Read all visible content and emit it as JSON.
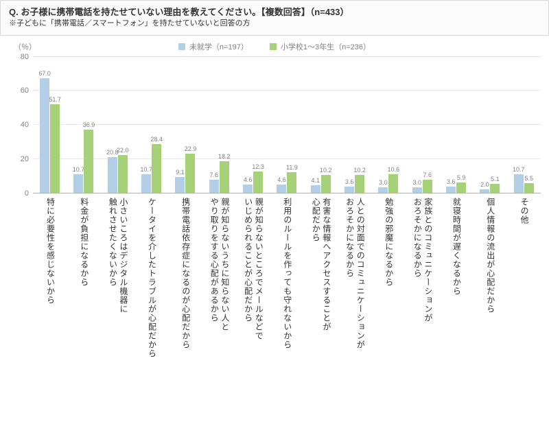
{
  "header": {
    "title": "Q. お子様に携帯電話を持たせていない理由を教えてください。【複数回答】（n=433）",
    "subtitle": "※子どもに「携帯電話／スマートフォン」を持たせていないと回答の方"
  },
  "chart": {
    "type": "bar",
    "y_unit": "（％）",
    "ylim": [
      0,
      80
    ],
    "ytick_step": 20,
    "background_color": "#ffffff",
    "grid_color": "#e8e8e8",
    "axis_color": "#b0b0b0",
    "label_color": "#808080",
    "label_fontsize": 11,
    "series": [
      {
        "name": "未就学（n=197）",
        "color": "#b3cfe8"
      },
      {
        "name": "小学校1～3年生（n=236）",
        "color": "#a7d178"
      }
    ],
    "categories": [
      "特に必要性を感じないから",
      "料金が負担になるから",
      "小さいころはデジタル機器に\n触れさせたくないから",
      "ケータイを介したトラブルが心配だから",
      "携帯電話依存症になるのが心配だから",
      "親が知らないうちに知らない人と\nやり取りをする心配があるから",
      "親が知らないところでメールなどで\nいじめられることが心配だから",
      "利用のルールを作っても守れないから",
      "有害な情報へアクセスすることが\n心配だから",
      "人との対面でのコミュニケーションが\nおろそかになるから",
      "勉強の邪魔になるから",
      "家族とのコミュニケーションが\nおろそかになるから",
      "就寝時間が遅くなるから",
      "個人情報の流出が心配だから",
      "その他"
    ],
    "data": [
      [
        67.0,
        51.7
      ],
      [
        10.7,
        36.9
      ],
      [
        20.8,
        22.0
      ],
      [
        10.7,
        28.4
      ],
      [
        9.1,
        22.9
      ],
      [
        7.6,
        18.2
      ],
      [
        4.6,
        12.3
      ],
      [
        4.6,
        11.9
      ],
      [
        4.1,
        10.2
      ],
      [
        3.6,
        10.2
      ],
      [
        3.0,
        10.6
      ],
      [
        3.0,
        7.6
      ],
      [
        3.6,
        5.9
      ],
      [
        2.0,
        5.1
      ],
      [
        10.7,
        5.5
      ]
    ]
  }
}
